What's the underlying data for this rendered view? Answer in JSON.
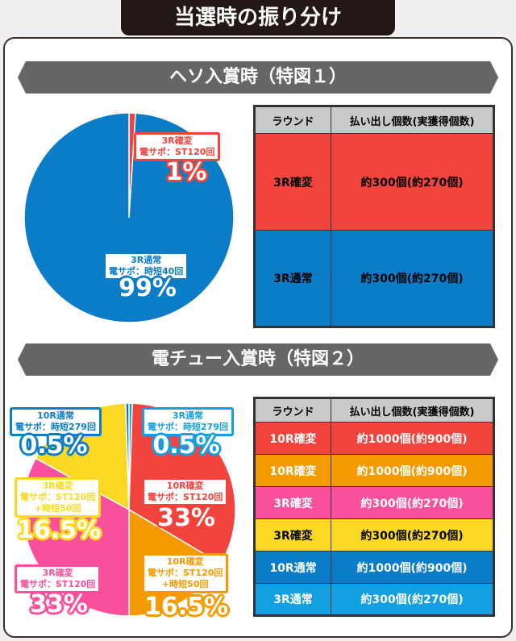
{
  "title": "当選時の振り分け",
  "sections": [
    {
      "title": "ヘソ入賞時（特図１）"
    },
    {
      "title": "電チュー入賞時（特図２）"
    }
  ],
  "chart_data": [
    {
      "type": "pie",
      "slices": [
        {
          "label": "3R確変",
          "sub": "電サポ：ST120回",
          "value": 1,
          "pct": "1%",
          "color": "#f0443c"
        },
        {
          "label": "3R通常",
          "sub": "電サポ：時短40回",
          "value": 99,
          "pct": "99%",
          "color": "#0a7cc8"
        }
      ]
    },
    {
      "type": "pie",
      "slices": [
        {
          "label": "3R通常",
          "sub": "電サポ：時短279回",
          "value": 0.5,
          "pct": "0.5%",
          "color": "#14a0e0"
        },
        {
          "label": "10R確変",
          "sub": "電サポ：ST120回",
          "value": 33,
          "pct": "33%",
          "color": "#f0443c"
        },
        {
          "label": "10R確変",
          "sub": "電サポ：ST120回\n+時短50回",
          "value": 16.5,
          "pct": "16.5%",
          "color": "#f59a00"
        },
        {
          "label": "3R確変",
          "sub": "電サポ：ST120回",
          "value": 33,
          "pct": "33%",
          "color": "#fa4f9a"
        },
        {
          "label": "3R確変",
          "sub": "電サポ：ST120回\n+時短50回",
          "value": 16.5,
          "pct": "16.5%",
          "color": "#fbd824"
        },
        {
          "label": "10R通常",
          "sub": "電サポ：時短279回",
          "value": 0.5,
          "pct": "0.5%",
          "color": "#0a7cc8"
        }
      ]
    }
  ],
  "tables": [
    {
      "headers": [
        "ラウンド",
        "払い出し個数(実獲得個数)"
      ],
      "rows": [
        {
          "round": "3R確変",
          "payout": "約300個(約270個)",
          "color": "#f0443c"
        },
        {
          "round": "3R通常",
          "payout": "約300個(約270個)",
          "color": "#0a7cc8"
        }
      ]
    },
    {
      "headers": [
        "ラウンド",
        "払い出し個数(実獲得個数)"
      ],
      "rows": [
        {
          "round": "10R確変",
          "payout": "約1000個(約900個)",
          "color": "#f0443c"
        },
        {
          "round": "10R確変",
          "payout": "約1000個(約900個)",
          "color": "#f59a00"
        },
        {
          "round": "3R確変",
          "payout": "約300個(約270個)",
          "color": "#fa4f9a"
        },
        {
          "round": "3R確変",
          "payout": "約300個(約270個)",
          "color": "#fbd824"
        },
        {
          "round": "10R通常",
          "payout": "約1000個(約900個)",
          "color": "#0a7cc8"
        },
        {
          "round": "3R通常",
          "payout": "約300個(約270個)",
          "color": "#14a0e0"
        }
      ]
    }
  ]
}
